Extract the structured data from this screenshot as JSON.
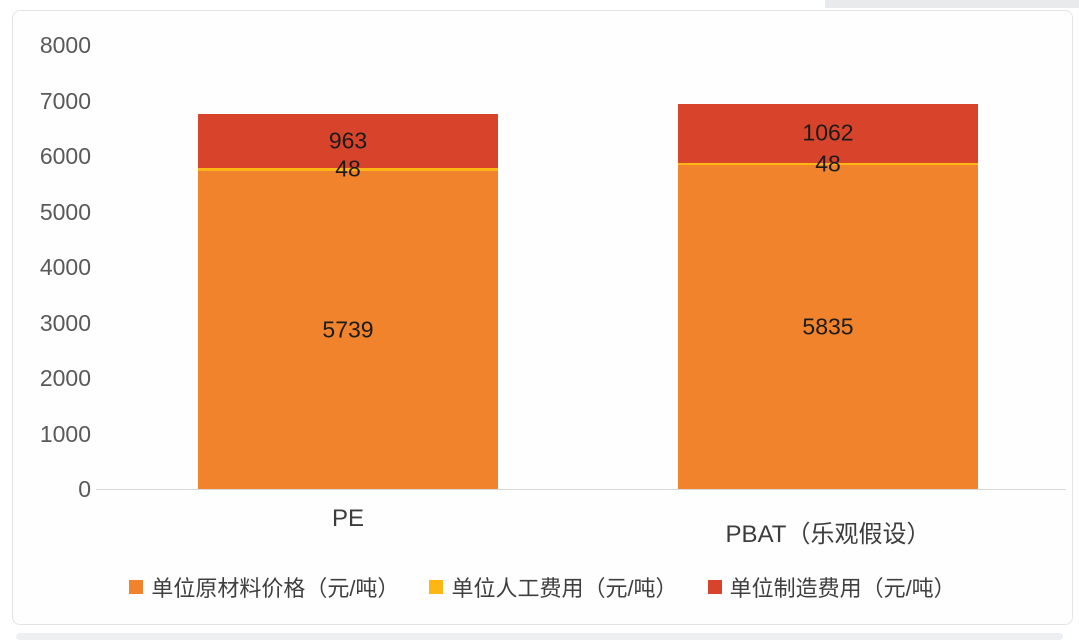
{
  "chart_data": {
    "type": "bar",
    "stacked": true,
    "title": "",
    "xlabel": "",
    "ylabel": "",
    "categories": [
      "PE",
      "PBAT（乐观假设）"
    ],
    "series": [
      {
        "name": "单位原材料价格（元/吨）",
        "color": "#F0832C",
        "values": [
          5739,
          5835
        ]
      },
      {
        "name": "单位人工费用（元/吨）",
        "color": "#FDB614",
        "values": [
          48,
          48
        ]
      },
      {
        "name": "单位制造费用（元/吨）",
        "color": "#D8432C",
        "values": [
          963,
          1062
        ]
      }
    ],
    "totals": [
      6750,
      6945
    ],
    "y_ticks": [
      8000,
      7000,
      6000,
      5000,
      4000,
      3000,
      2000,
      1000,
      0
    ],
    "ylim": [
      0,
      8000
    ],
    "grid": false,
    "legend_position": "bottom"
  }
}
